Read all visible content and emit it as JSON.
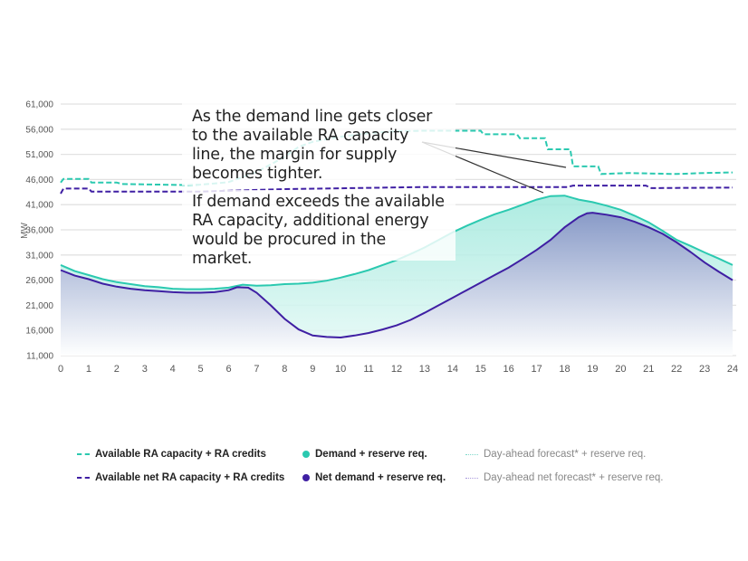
{
  "chart_data": {
    "type": "area",
    "title": "",
    "xlabel": "",
    "ylabel": "MW",
    "xlim": [
      0,
      24
    ],
    "ylim": [
      11000,
      61000
    ],
    "y_ticks": [
      "61,000",
      "56,000",
      "51,000",
      "46,000",
      "41,000",
      "36,000",
      "31,000",
      "26,000",
      "21,000",
      "16,000",
      "11,000"
    ],
    "y_tick_values": [
      61000,
      56000,
      51000,
      46000,
      41000,
      36000,
      31000,
      26000,
      21000,
      16000,
      11000
    ],
    "x_ticks": [
      "0",
      "1",
      "2",
      "3",
      "4",
      "5",
      "6",
      "7",
      "8",
      "9",
      "10",
      "11",
      "12",
      "13",
      "14",
      "15",
      "16",
      "17",
      "18",
      "19",
      "20",
      "21",
      "22",
      "23",
      "24"
    ],
    "grid": true,
    "legend_position": "bottom",
    "series": [
      {
        "name": "Available RA capacity + RA credits",
        "style": "dashed",
        "color": "#2bc9b0",
        "x": [
          0,
          0.1,
          1,
          1.1,
          2,
          2.2,
          4.5,
          5,
          5.5,
          6,
          7,
          8,
          8.5,
          9,
          10,
          11,
          12,
          13,
          14,
          15,
          15.1,
          16.3,
          16.4,
          17.3,
          17.4,
          18.2,
          18.3,
          19.2,
          19.3,
          20.3,
          21,
          22,
          23,
          24
        ],
        "y": [
          45400,
          46100,
          46100,
          45400,
          45400,
          45100,
          44900,
          45000,
          45200,
          45500,
          47500,
          50500,
          52500,
          53500,
          54500,
          55200,
          55600,
          55700,
          55700,
          55700,
          55000,
          55000,
          54200,
          54200,
          52000,
          52000,
          48600,
          48600,
          47100,
          47300,
          47200,
          47100,
          47300,
          47400
        ]
      },
      {
        "name": "Available net RA capacity + RA credits",
        "style": "dashed",
        "color": "#3f1fa3",
        "x": [
          0,
          0.1,
          1,
          1.1,
          5,
          8,
          13,
          14,
          18.1,
          18.3,
          20.9,
          21.1,
          24
        ],
        "y": [
          43200,
          44200,
          44200,
          43600,
          43600,
          44100,
          44500,
          44500,
          44500,
          44800,
          44800,
          44300,
          44400
        ]
      },
      {
        "name": "Demand + reserve req.",
        "style": "area",
        "color": "#2bc9b0",
        "x": [
          0,
          0.5,
          1,
          1.5,
          2,
          2.5,
          3,
          3.5,
          4,
          4.5,
          5,
          5.5,
          6,
          6.5,
          7,
          7.5,
          8,
          8.5,
          9,
          9.5,
          10,
          10.5,
          11,
          11.5,
          12,
          12.5,
          13,
          13.5,
          14,
          14.5,
          15,
          15.5,
          16,
          16.5,
          17,
          17.5,
          18,
          18.5,
          19,
          19.5,
          20,
          20.5,
          21,
          21.5,
          22,
          22.5,
          23,
          23.5,
          24
        ],
        "y": [
          29000,
          27800,
          27000,
          26200,
          25600,
          25200,
          24800,
          24600,
          24300,
          24200,
          24200,
          24300,
          24500,
          25100,
          24900,
          25000,
          25200,
          25300,
          25500,
          25900,
          26500,
          27200,
          28000,
          29000,
          30000,
          31200,
          32500,
          34000,
          35500,
          36800,
          38000,
          39100,
          40000,
          41000,
          42000,
          42700,
          42800,
          42000,
          41500,
          40800,
          40000,
          38800,
          37500,
          35800,
          34000,
          32800,
          31500,
          30300,
          29000
        ]
      },
      {
        "name": "Net demand + reserve req.",
        "style": "area",
        "color": "#3f1fa3",
        "x": [
          0,
          0.5,
          1,
          1.5,
          2,
          2.5,
          3,
          3.5,
          4,
          4.5,
          5,
          5.5,
          6,
          6.3,
          6.7,
          7,
          7.5,
          8,
          8.5,
          9,
          9.5,
          10,
          10.5,
          11,
          11.5,
          12,
          12.5,
          13,
          13.5,
          14,
          14.5,
          15,
          15.5,
          16,
          16.5,
          17,
          17.5,
          18,
          18.5,
          18.8,
          19,
          19.5,
          20,
          20.5,
          21,
          21.5,
          22,
          22.5,
          23,
          23.5,
          24
        ],
        "y": [
          28000,
          26900,
          26200,
          25300,
          24700,
          24300,
          24000,
          23800,
          23600,
          23500,
          23500,
          23600,
          24000,
          24600,
          24500,
          23500,
          21000,
          18300,
          16200,
          15000,
          14700,
          14600,
          15000,
          15500,
          16200,
          17000,
          18100,
          19500,
          21000,
          22500,
          24000,
          25500,
          27000,
          28500,
          30200,
          32000,
          34000,
          36500,
          38500,
          39300,
          39400,
          39000,
          38500,
          37600,
          36500,
          35200,
          33500,
          31600,
          29500,
          27700,
          26000
        ]
      },
      {
        "name": "Day-ahead forecast* + reserve req.",
        "style": "dotted",
        "color": "#9be6da",
        "x": [],
        "y": []
      },
      {
        "name": "Day-ahead net forecast* + reserve req.",
        "style": "dotted",
        "color": "#b8a9e0",
        "x": [],
        "y": []
      }
    ],
    "annotations": [
      "As the demand line gets closer to the available RA capacity line, the margin for supply becomes tighter.",
      "If demand exceeds the available RA capacity, additional energy would be procured in the market."
    ]
  },
  "annotation_text": {
    "first": [
      "As the demand line gets closer",
      "to the available RA capacity",
      "line, the margin for supply",
      "becomes tighter."
    ],
    "second": [
      "If demand exceeds the available",
      "RA capacity, additional energy",
      "would be procured in the market."
    ]
  },
  "legend": [
    {
      "label": "Available RA capacity + RA credits",
      "swatch": "dash",
      "color": "#2bc9b0"
    },
    {
      "label": "Demand + reserve req.",
      "swatch": "dot",
      "color": "#2bc9b0"
    },
    {
      "label": "Day-ahead forecast* + reserve req.",
      "swatch": "dotted",
      "color": "#7fd9cb"
    },
    {
      "label": "Available net RA capacity + RA credits",
      "swatch": "dash",
      "color": "#3f1fa3"
    },
    {
      "label": "Net demand + reserve req.",
      "swatch": "dot",
      "color": "#3f1fa3"
    },
    {
      "label": "Day-ahead net forecast* + reserve req.",
      "swatch": "dotted",
      "color": "#a999dc"
    }
  ],
  "colors": {
    "demand": "#2bc9b0",
    "net_demand": "#3f1fa3",
    "demand_fill": "#c9f1ea",
    "net_fill_top": "#8d9cc8",
    "grid": "#e2e2e2"
  }
}
